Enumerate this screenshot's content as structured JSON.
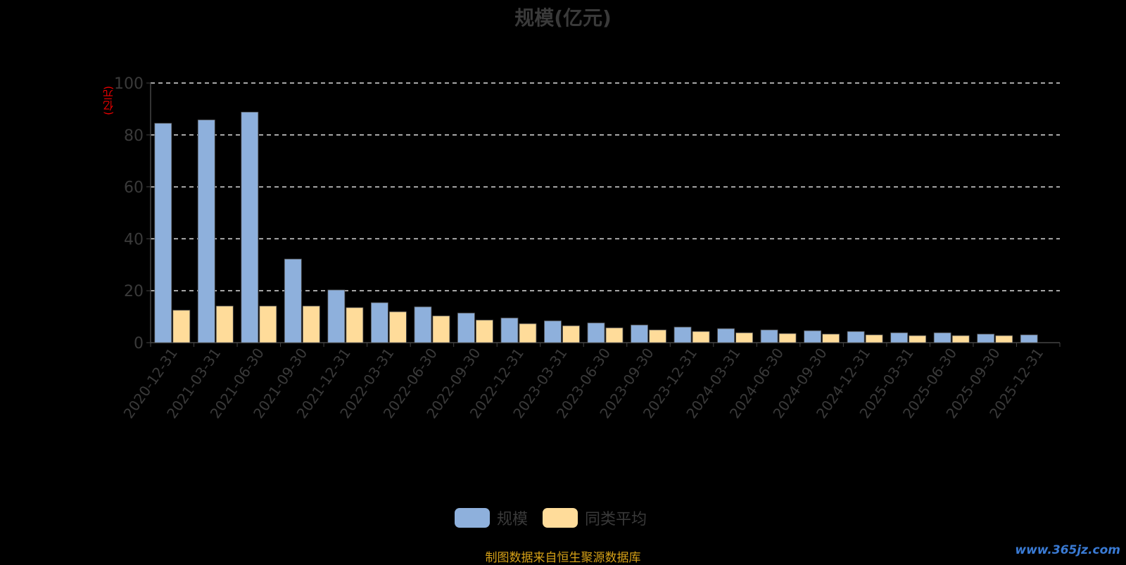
{
  "chart_data": {
    "type": "bar",
    "title": "规模(亿元)",
    "ylabel": "(亿元)",
    "xlabel": "",
    "ylim": [
      0,
      100
    ],
    "yticks": [
      0,
      20,
      40,
      60,
      80,
      100
    ],
    "grid": true,
    "legend_position": "bottom",
    "categories": [
      "2020-12-31",
      "2021-03-31",
      "2021-06-30",
      "2021-09-30",
      "2021-12-31",
      "2022-03-31",
      "2022-06-30",
      "2022-09-30",
      "2022-12-31",
      "2023-03-31",
      "2023-06-30",
      "2023-09-30",
      "2023-12-31",
      "2024-03-31",
      "2024-06-30",
      "2024-09-30",
      "2024-12-31",
      "2025-03-31",
      "2025-06-30",
      "2025-09-30",
      "2025-12-31"
    ],
    "series": [
      {
        "name": "规模",
        "color": "#8eb0dc",
        "values": [
          84.5,
          85.8,
          88.8,
          32.2,
          20.3,
          15.4,
          13.8,
          11.4,
          9.5,
          8.4,
          7.6,
          6.8,
          6.0,
          5.4,
          4.9,
          4.6,
          4.3,
          3.8,
          3.8,
          3.3,
          3.0
        ]
      },
      {
        "name": "同类平均",
        "color": "#ffdc9a",
        "values": [
          12.5,
          14.1,
          14.1,
          14.1,
          13.5,
          11.9,
          10.3,
          8.7,
          7.3,
          6.5,
          5.7,
          4.9,
          4.3,
          3.8,
          3.5,
          3.3,
          3.0,
          2.7,
          2.7,
          2.7,
          null
        ]
      }
    ]
  },
  "source": "制图数据来自恒生聚源数据库",
  "watermark": "www.365jz.com"
}
